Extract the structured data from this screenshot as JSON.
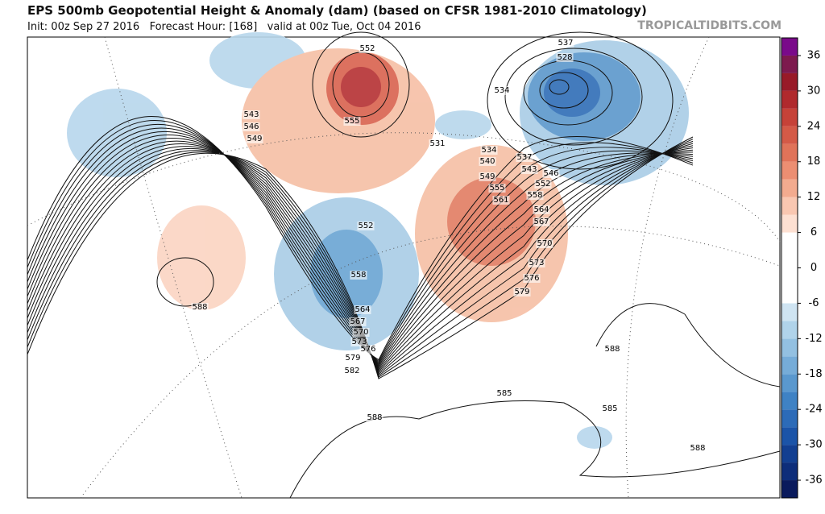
{
  "header": {
    "title": "EPS 500mb Geopotential Height & Anomaly (dam) (based on CFSR 1981-2010 Climatology)",
    "subtitle": "Init: 00z Sep 27 2016   Forecast Hour: [168]   valid at 00z Tue, Oct 04 2016",
    "credit": "TROPICALTIDBITS.COM"
  },
  "colorbar": {
    "lim": [
      -39,
      39
    ],
    "ticks": [
      36,
      30,
      24,
      18,
      12,
      6,
      0,
      -6,
      -12,
      -18,
      -24,
      -30,
      -36
    ],
    "colors": [
      "#0a1a5c",
      "#0d2d7a",
      "#123f91",
      "#1b54a8",
      "#2c6bb8",
      "#3f82c4",
      "#5a98ce",
      "#76acd8",
      "#93c0e1",
      "#b0d3ea",
      "#cfe4f2",
      "#ffffff",
      "#ffffff",
      "#ffffff",
      "#ffffff",
      "#fde0d2",
      "#f9c7b1",
      "#f3ab8f",
      "#ec8e72",
      "#e07359",
      "#d45a47",
      "#c64238",
      "#b02a2d",
      "#981a28",
      "#7d1a4e",
      "#7a0a8a"
    ]
  },
  "contour_labels": [
    "537",
    "528",
    "552",
    "534",
    "543",
    "546",
    "549",
    "555",
    "531",
    "534",
    "537",
    "540",
    "543",
    "546",
    "549",
    "552",
    "555",
    "558",
    "561",
    "564",
    "567",
    "570",
    "573",
    "576",
    "579",
    "552",
    "558",
    "564",
    "567",
    "570",
    "573",
    "576",
    "579",
    "582",
    "588",
    "585",
    "585",
    "588",
    "588",
    "588"
  ]
}
